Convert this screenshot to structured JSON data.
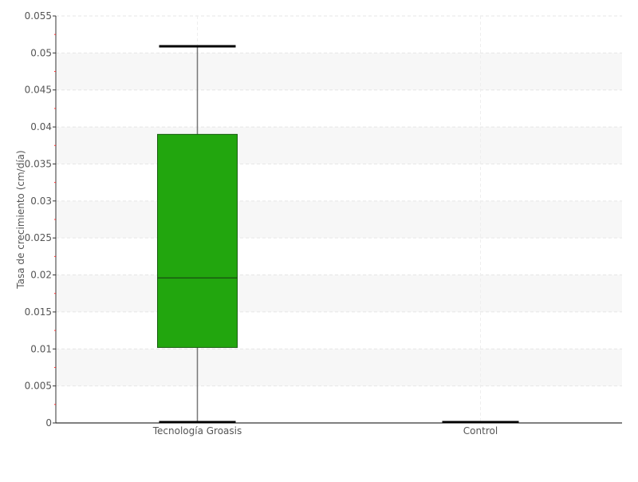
{
  "chart_data": {
    "type": "boxplot",
    "title": "",
    "xlabel": "",
    "ylabel": "Tasa de crecimiento (cm/día)",
    "ylim": [
      0,
      0.055
    ],
    "yticks": [
      "0",
      "0.005",
      "0.01",
      "0.015",
      "0.02",
      "0.025",
      "0.03",
      "0.035",
      "0.04",
      "0.045",
      "0.05",
      "0.055"
    ],
    "grid": true,
    "categories": [
      "Tecnología Groasis",
      "Control"
    ],
    "boxes": [
      {
        "category": "Tecnología Groasis",
        "min": 0,
        "q1": 0.0102,
        "median": 0.0196,
        "q3": 0.039,
        "max": 0.0508,
        "color": "#22a60e"
      },
      {
        "category": "Control",
        "min": 0,
        "q1": 0,
        "median": 0,
        "q3": 0,
        "max": 0,
        "color": "#22a60e"
      }
    ]
  }
}
